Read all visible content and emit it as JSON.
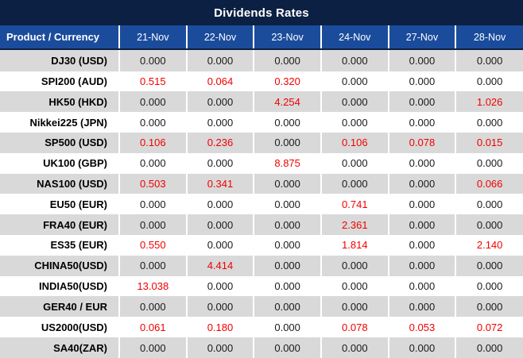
{
  "title": "Dividends Rates",
  "table": {
    "product_header": "Product / Currency",
    "date_columns": [
      "21-Nov",
      "22-Nov",
      "23-Nov",
      "24-Nov",
      "27-Nov",
      "28-Nov"
    ],
    "rows": [
      {
        "product": "DJ30 (USD)",
        "values": [
          "0.000",
          "0.000",
          "0.000",
          "0.000",
          "0.000",
          "0.000"
        ]
      },
      {
        "product": "SPI200 (AUD)",
        "values": [
          "0.515",
          "0.064",
          "0.320",
          "0.000",
          "0.000",
          "0.000"
        ]
      },
      {
        "product": "HK50 (HKD)",
        "values": [
          "0.000",
          "0.000",
          "4.254",
          "0.000",
          "0.000",
          "1.026"
        ]
      },
      {
        "product": "Nikkei225 (JPN)",
        "values": [
          "0.000",
          "0.000",
          "0.000",
          "0.000",
          "0.000",
          "0.000"
        ]
      },
      {
        "product": "SP500 (USD)",
        "values": [
          "0.106",
          "0.236",
          "0.000",
          "0.106",
          "0.078",
          "0.015"
        ]
      },
      {
        "product": "UK100 (GBP)",
        "values": [
          "0.000",
          "0.000",
          "8.875",
          "0.000",
          "0.000",
          "0.000"
        ]
      },
      {
        "product": "NAS100 (USD)",
        "values": [
          "0.503",
          "0.341",
          "0.000",
          "0.000",
          "0.000",
          "0.066"
        ]
      },
      {
        "product": "EU50 (EUR)",
        "values": [
          "0.000",
          "0.000",
          "0.000",
          "0.741",
          "0.000",
          "0.000"
        ]
      },
      {
        "product": "FRA40 (EUR)",
        "values": [
          "0.000",
          "0.000",
          "0.000",
          "2.361",
          "0.000",
          "0.000"
        ]
      },
      {
        "product": "ES35 (EUR)",
        "values": [
          "0.550",
          "0.000",
          "0.000",
          "1.814",
          "0.000",
          "2.140"
        ]
      },
      {
        "product": "CHINA50(USD)",
        "values": [
          "0.000",
          "4.414",
          "0.000",
          "0.000",
          "0.000",
          "0.000"
        ]
      },
      {
        "product": "INDIA50(USD)",
        "values": [
          "13.038",
          "0.000",
          "0.000",
          "0.000",
          "0.000",
          "0.000"
        ]
      },
      {
        "product": "GER40 / EUR",
        "values": [
          "0.000",
          "0.000",
          "0.000",
          "0.000",
          "0.000",
          "0.000"
        ]
      },
      {
        "product": "US2000(USD)",
        "values": [
          "0.061",
          "0.180",
          "0.000",
          "0.078",
          "0.053",
          "0.072"
        ]
      },
      {
        "product": "SA40(ZAR)",
        "values": [
          "0.000",
          "0.000",
          "0.000",
          "0.000",
          "0.000",
          "0.000"
        ]
      }
    ]
  },
  "chart_data": {
    "type": "table",
    "title": "Dividends Rates",
    "columns": [
      "Product / Currency",
      "21-Nov",
      "22-Nov",
      "23-Nov",
      "24-Nov",
      "27-Nov",
      "28-Nov"
    ],
    "categories": [
      "DJ30 (USD)",
      "SPI200 (AUD)",
      "HK50 (HKD)",
      "Nikkei225 (JPN)",
      "SP500 (USD)",
      "UK100 (GBP)",
      "NAS100 (USD)",
      "EU50 (EUR)",
      "FRA40 (EUR)",
      "ES35 (EUR)",
      "CHINA50(USD)",
      "INDIA50(USD)",
      "GER40 / EUR",
      "US2000(USD)",
      "SA40(ZAR)"
    ],
    "series": [
      {
        "name": "21-Nov",
        "values": [
          0.0,
          0.515,
          0.0,
          0.0,
          0.106,
          0.0,
          0.503,
          0.0,
          0.0,
          0.55,
          0.0,
          13.038,
          0.0,
          0.061,
          0.0
        ]
      },
      {
        "name": "22-Nov",
        "values": [
          0.0,
          0.064,
          0.0,
          0.0,
          0.236,
          0.0,
          0.341,
          0.0,
          0.0,
          0.0,
          4.414,
          0.0,
          0.0,
          0.18,
          0.0
        ]
      },
      {
        "name": "23-Nov",
        "values": [
          0.0,
          0.32,
          4.254,
          0.0,
          0.0,
          8.875,
          0.0,
          0.0,
          0.0,
          0.0,
          0.0,
          0.0,
          0.0,
          0.0,
          0.0
        ]
      },
      {
        "name": "24-Nov",
        "values": [
          0.0,
          0.0,
          0.0,
          0.0,
          0.106,
          0.0,
          0.0,
          0.741,
          2.361,
          1.814,
          0.0,
          0.0,
          0.0,
          0.078,
          0.0
        ]
      },
      {
        "name": "27-Nov",
        "values": [
          0.0,
          0.0,
          0.0,
          0.0,
          0.078,
          0.0,
          0.0,
          0.0,
          0.0,
          0.0,
          0.0,
          0.0,
          0.0,
          0.053,
          0.0
        ]
      },
      {
        "name": "28-Nov",
        "values": [
          0.0,
          0.0,
          1.026,
          0.0,
          0.015,
          0.0,
          0.066,
          0.0,
          0.0,
          2.14,
          0.0,
          0.0,
          0.0,
          0.072,
          0.0
        ]
      }
    ],
    "value_format": "3 decimal places",
    "highlight_rule": "non-zero values rendered in red"
  },
  "colors": {
    "title_bg": "#0b2042",
    "header_bg": "#1b4c9c",
    "header_text": "#ffffff",
    "row_alt_bg": "#d9d9d9",
    "row_bg": "#ffffff",
    "text": "#1a1a1a",
    "nonzero_text": "#f20000"
  }
}
